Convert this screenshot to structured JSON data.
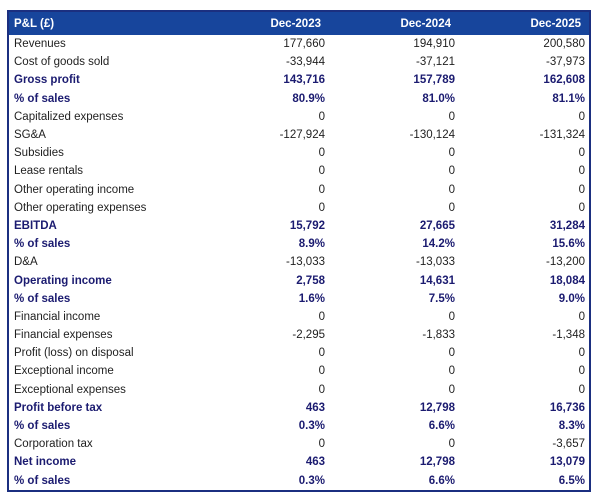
{
  "colors": {
    "header_background": "#17459c",
    "header_text": "#ffffff",
    "outer_border": "#1b2f80",
    "emphasis_text": "#1b1b70",
    "regular_text": "#1f1f1f",
    "row_background": "#ffffff"
  },
  "table": {
    "title_column_header": "P&L (£)",
    "header": [
      "P&L (£)",
      "Dec-2023",
      "Dec-2024",
      "Dec-2025"
    ],
    "rows": [
      {
        "label": "Revenues",
        "values": [
          "177,660",
          "194,910",
          "200,580"
        ],
        "emphasis": false
      },
      {
        "label": "Cost of goods sold",
        "values": [
          "-33,944",
          "-37,121",
          "-37,973"
        ],
        "emphasis": false
      },
      {
        "label": "Gross profit",
        "values": [
          "143,716",
          "157,789",
          "162,608"
        ],
        "emphasis": true
      },
      {
        "label": "% of sales",
        "values": [
          "80.9%",
          "81.0%",
          "81.1%"
        ],
        "emphasis": true
      },
      {
        "label": "Capitalized expenses",
        "values": [
          "0",
          "0",
          "0"
        ],
        "emphasis": false
      },
      {
        "label": "SG&A",
        "values": [
          "-127,924",
          "-130,124",
          "-131,324"
        ],
        "emphasis": false
      },
      {
        "label": "Subsidies",
        "values": [
          "0",
          "0",
          "0"
        ],
        "emphasis": false
      },
      {
        "label": "Lease rentals",
        "values": [
          "0",
          "0",
          "0"
        ],
        "emphasis": false
      },
      {
        "label": "Other operating income",
        "values": [
          "0",
          "0",
          "0"
        ],
        "emphasis": false
      },
      {
        "label": "Other operating expenses",
        "values": [
          "0",
          "0",
          "0"
        ],
        "emphasis": false
      },
      {
        "label": "EBITDA",
        "values": [
          "15,792",
          "27,665",
          "31,284"
        ],
        "emphasis": true
      },
      {
        "label": "% of sales",
        "values": [
          "8.9%",
          "14.2%",
          "15.6%"
        ],
        "emphasis": true
      },
      {
        "label": "D&A",
        "values": [
          "-13,033",
          "-13,033",
          "-13,200"
        ],
        "emphasis": false
      },
      {
        "label": "Operating income",
        "values": [
          "2,758",
          "14,631",
          "18,084"
        ],
        "emphasis": true
      },
      {
        "label": "% of sales",
        "values": [
          "1.6%",
          "7.5%",
          "9.0%"
        ],
        "emphasis": true
      },
      {
        "label": "Financial income",
        "values": [
          "0",
          "0",
          "0"
        ],
        "emphasis": false
      },
      {
        "label": "Financial expenses",
        "values": [
          "-2,295",
          "-1,833",
          "-1,348"
        ],
        "emphasis": false
      },
      {
        "label": "Profit (loss) on disposal",
        "values": [
          "0",
          "0",
          "0"
        ],
        "emphasis": false
      },
      {
        "label": "Exceptional income",
        "values": [
          "0",
          "0",
          "0"
        ],
        "emphasis": false
      },
      {
        "label": "Exceptional expenses",
        "values": [
          "0",
          "0",
          "0"
        ],
        "emphasis": false
      },
      {
        "label": "Profit before tax",
        "values": [
          "463",
          "12,798",
          "16,736"
        ],
        "emphasis": true
      },
      {
        "label": "% of sales",
        "values": [
          "0.3%",
          "6.6%",
          "8.3%"
        ],
        "emphasis": true
      },
      {
        "label": "Corporation tax",
        "values": [
          "0",
          "0",
          "-3,657"
        ],
        "emphasis": false
      },
      {
        "label": "Net income",
        "values": [
          "463",
          "12,798",
          "13,079"
        ],
        "emphasis": true
      },
      {
        "label": "% of sales",
        "values": [
          "0.3%",
          "6.6%",
          "6.5%"
        ],
        "emphasis": true
      }
    ]
  }
}
